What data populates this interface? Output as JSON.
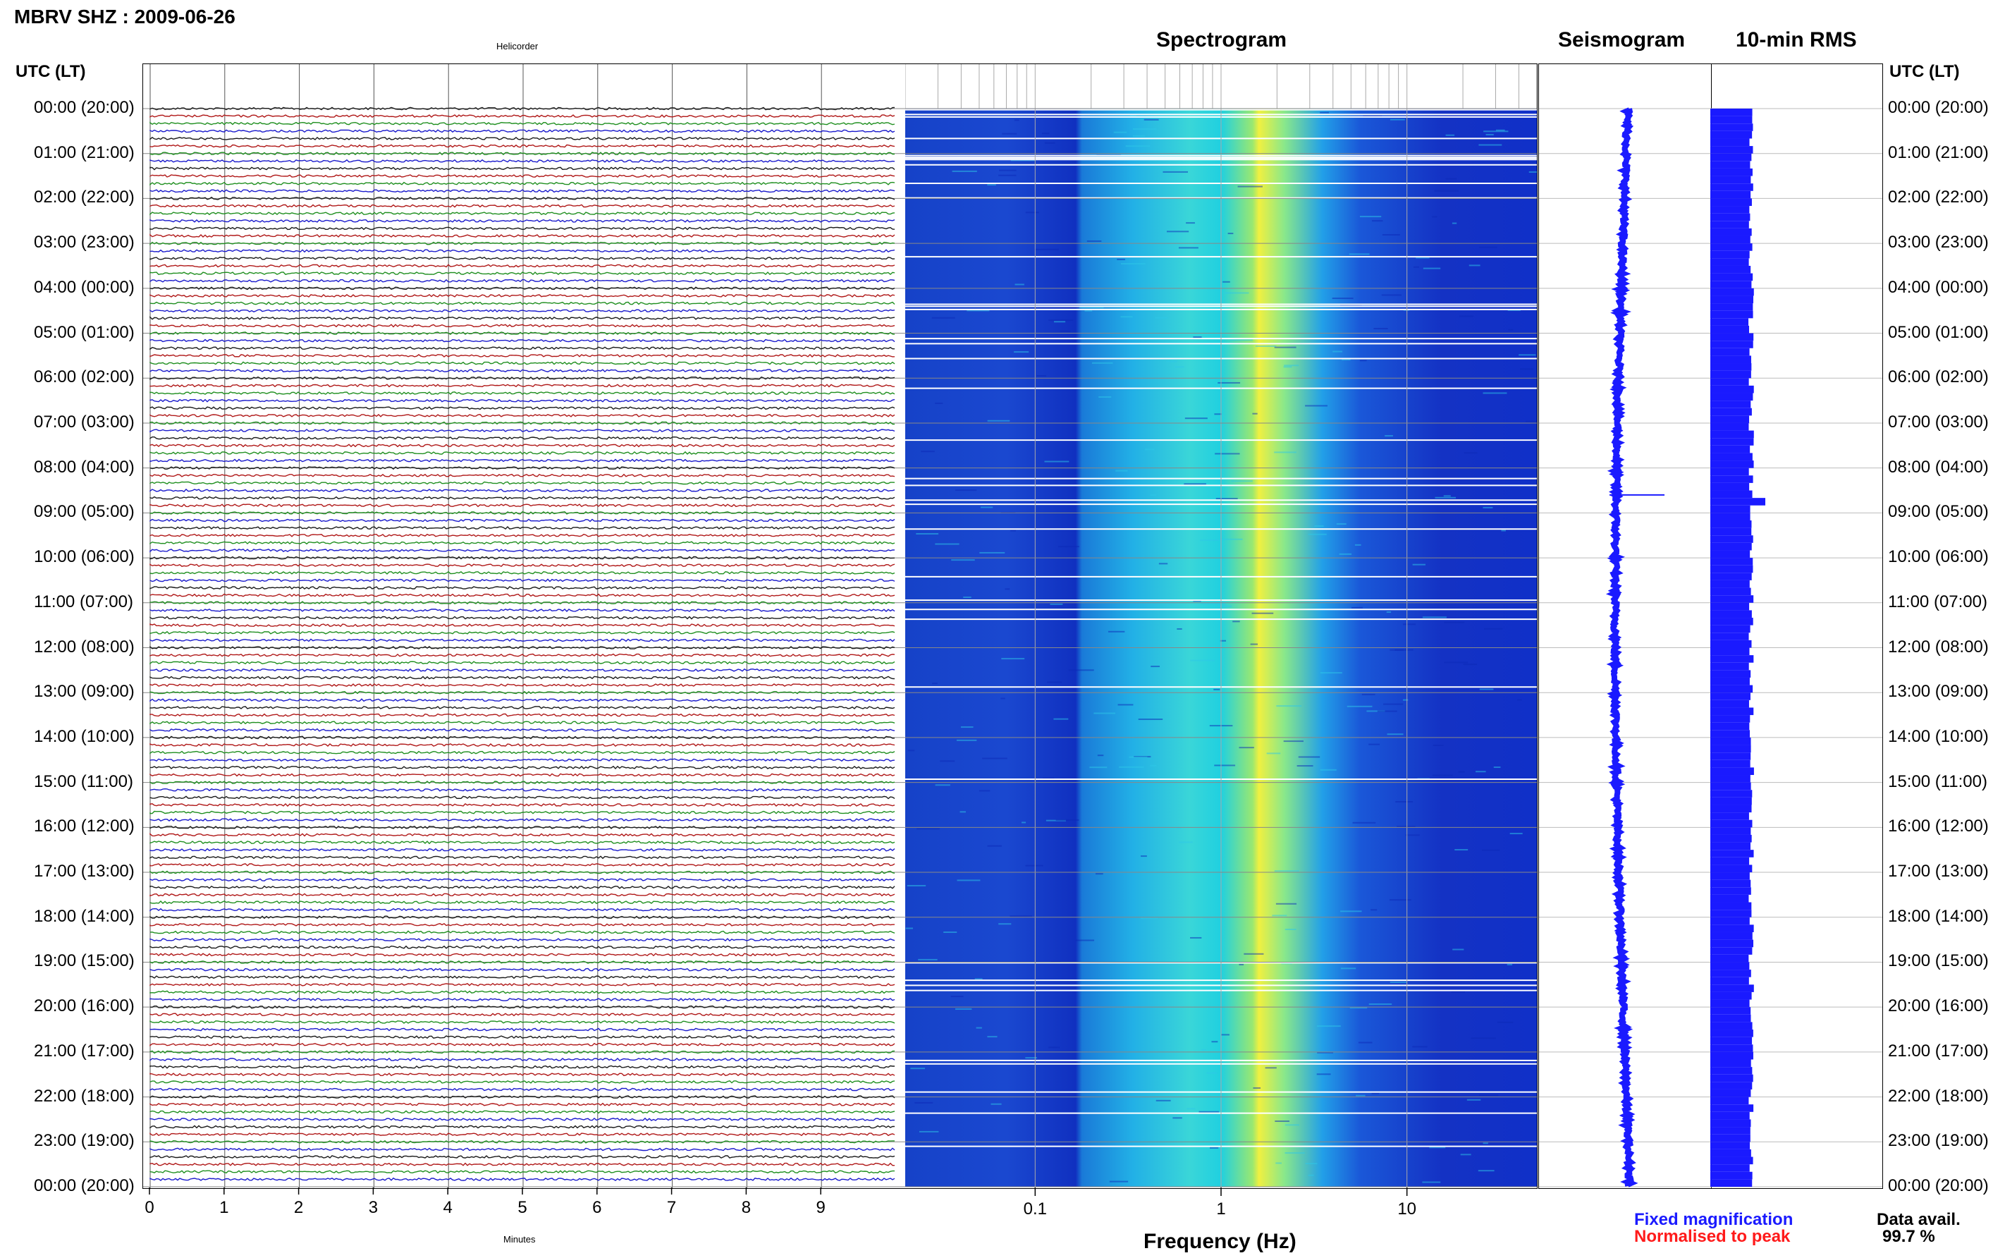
{
  "header": {
    "title": "MBRV SHZ : 2009-06-26",
    "left_axis_label": "UTC (LT)",
    "right_axis_label": "UTC (LT)"
  },
  "panels": {
    "helicorder": {
      "title": "Helicorder",
      "xlabel": "Minutes"
    },
    "spectrogram": {
      "title": "Spectrogram",
      "xlabel": "Frequency (Hz)"
    },
    "seismogram": {
      "title": "Seismogram"
    },
    "rms": {
      "title": "10-min RMS"
    }
  },
  "legend": {
    "fixed": "Fixed magnification",
    "normalised": "Normalised to peak",
    "fixed_color": "#1a1aff",
    "normalised_color": "#ff1a1a"
  },
  "availability": {
    "label": "Data avail.",
    "value": "99.7 %"
  },
  "colors": {
    "helicorder_traces": [
      "#1a1a1a",
      "#b01818",
      "#1f8f1f",
      "#1a1acc"
    ],
    "spectrogram_low": "#1030c8",
    "spectrogram_mid": "#20d0e0",
    "spectrogram_high": "#f0f040",
    "seismogram": "#1a1aff",
    "rms": "#1a1aff"
  },
  "chart_data": [
    {
      "type": "line",
      "title": "Helicorder",
      "xlabel": "Minutes",
      "x_ticks": [
        0,
        1,
        2,
        3,
        4,
        5,
        6,
        7,
        8,
        9
      ],
      "xlim": [
        0,
        10
      ],
      "y_ticks": [
        "00:00 (20:00)",
        "01:00 (21:00)",
        "02:00 (22:00)",
        "03:00 (23:00)",
        "04:00 (00:00)",
        "05:00 (01:00)",
        "06:00 (02:00)",
        "07:00 (03:00)",
        "08:00 (04:00)",
        "09:00 (05:00)",
        "10:00 (06:00)",
        "11:00 (07:00)",
        "12:00 (08:00)",
        "13:00 (09:00)",
        "14:00 (10:00)",
        "15:00 (11:00)",
        "16:00 (12:00)",
        "17:00 (13:00)",
        "18:00 (14:00)",
        "19:00 (15:00)",
        "20:00 (16:00)",
        "21:00 (17:00)",
        "22:00 (18:00)",
        "23:00 (19:00)",
        "00:00 (20:00)"
      ],
      "traces_per_hour": 6
    },
    {
      "type": "heatmap",
      "title": "Spectrogram",
      "xlabel": "Frequency (Hz)",
      "x_scale": "log",
      "xlim": [
        0.02,
        50
      ],
      "x_tick_labels": [
        "0.1",
        "1",
        "10"
      ],
      "x_ticks": [
        0.1,
        1,
        10
      ],
      "peak_band_hz": [
        0.3,
        2
      ]
    },
    {
      "type": "line",
      "title": "Seismogram",
      "trace_color": "#1a1aff"
    },
    {
      "type": "bar",
      "title": "10-min RMS",
      "bar_color": "#1a1aff"
    }
  ]
}
